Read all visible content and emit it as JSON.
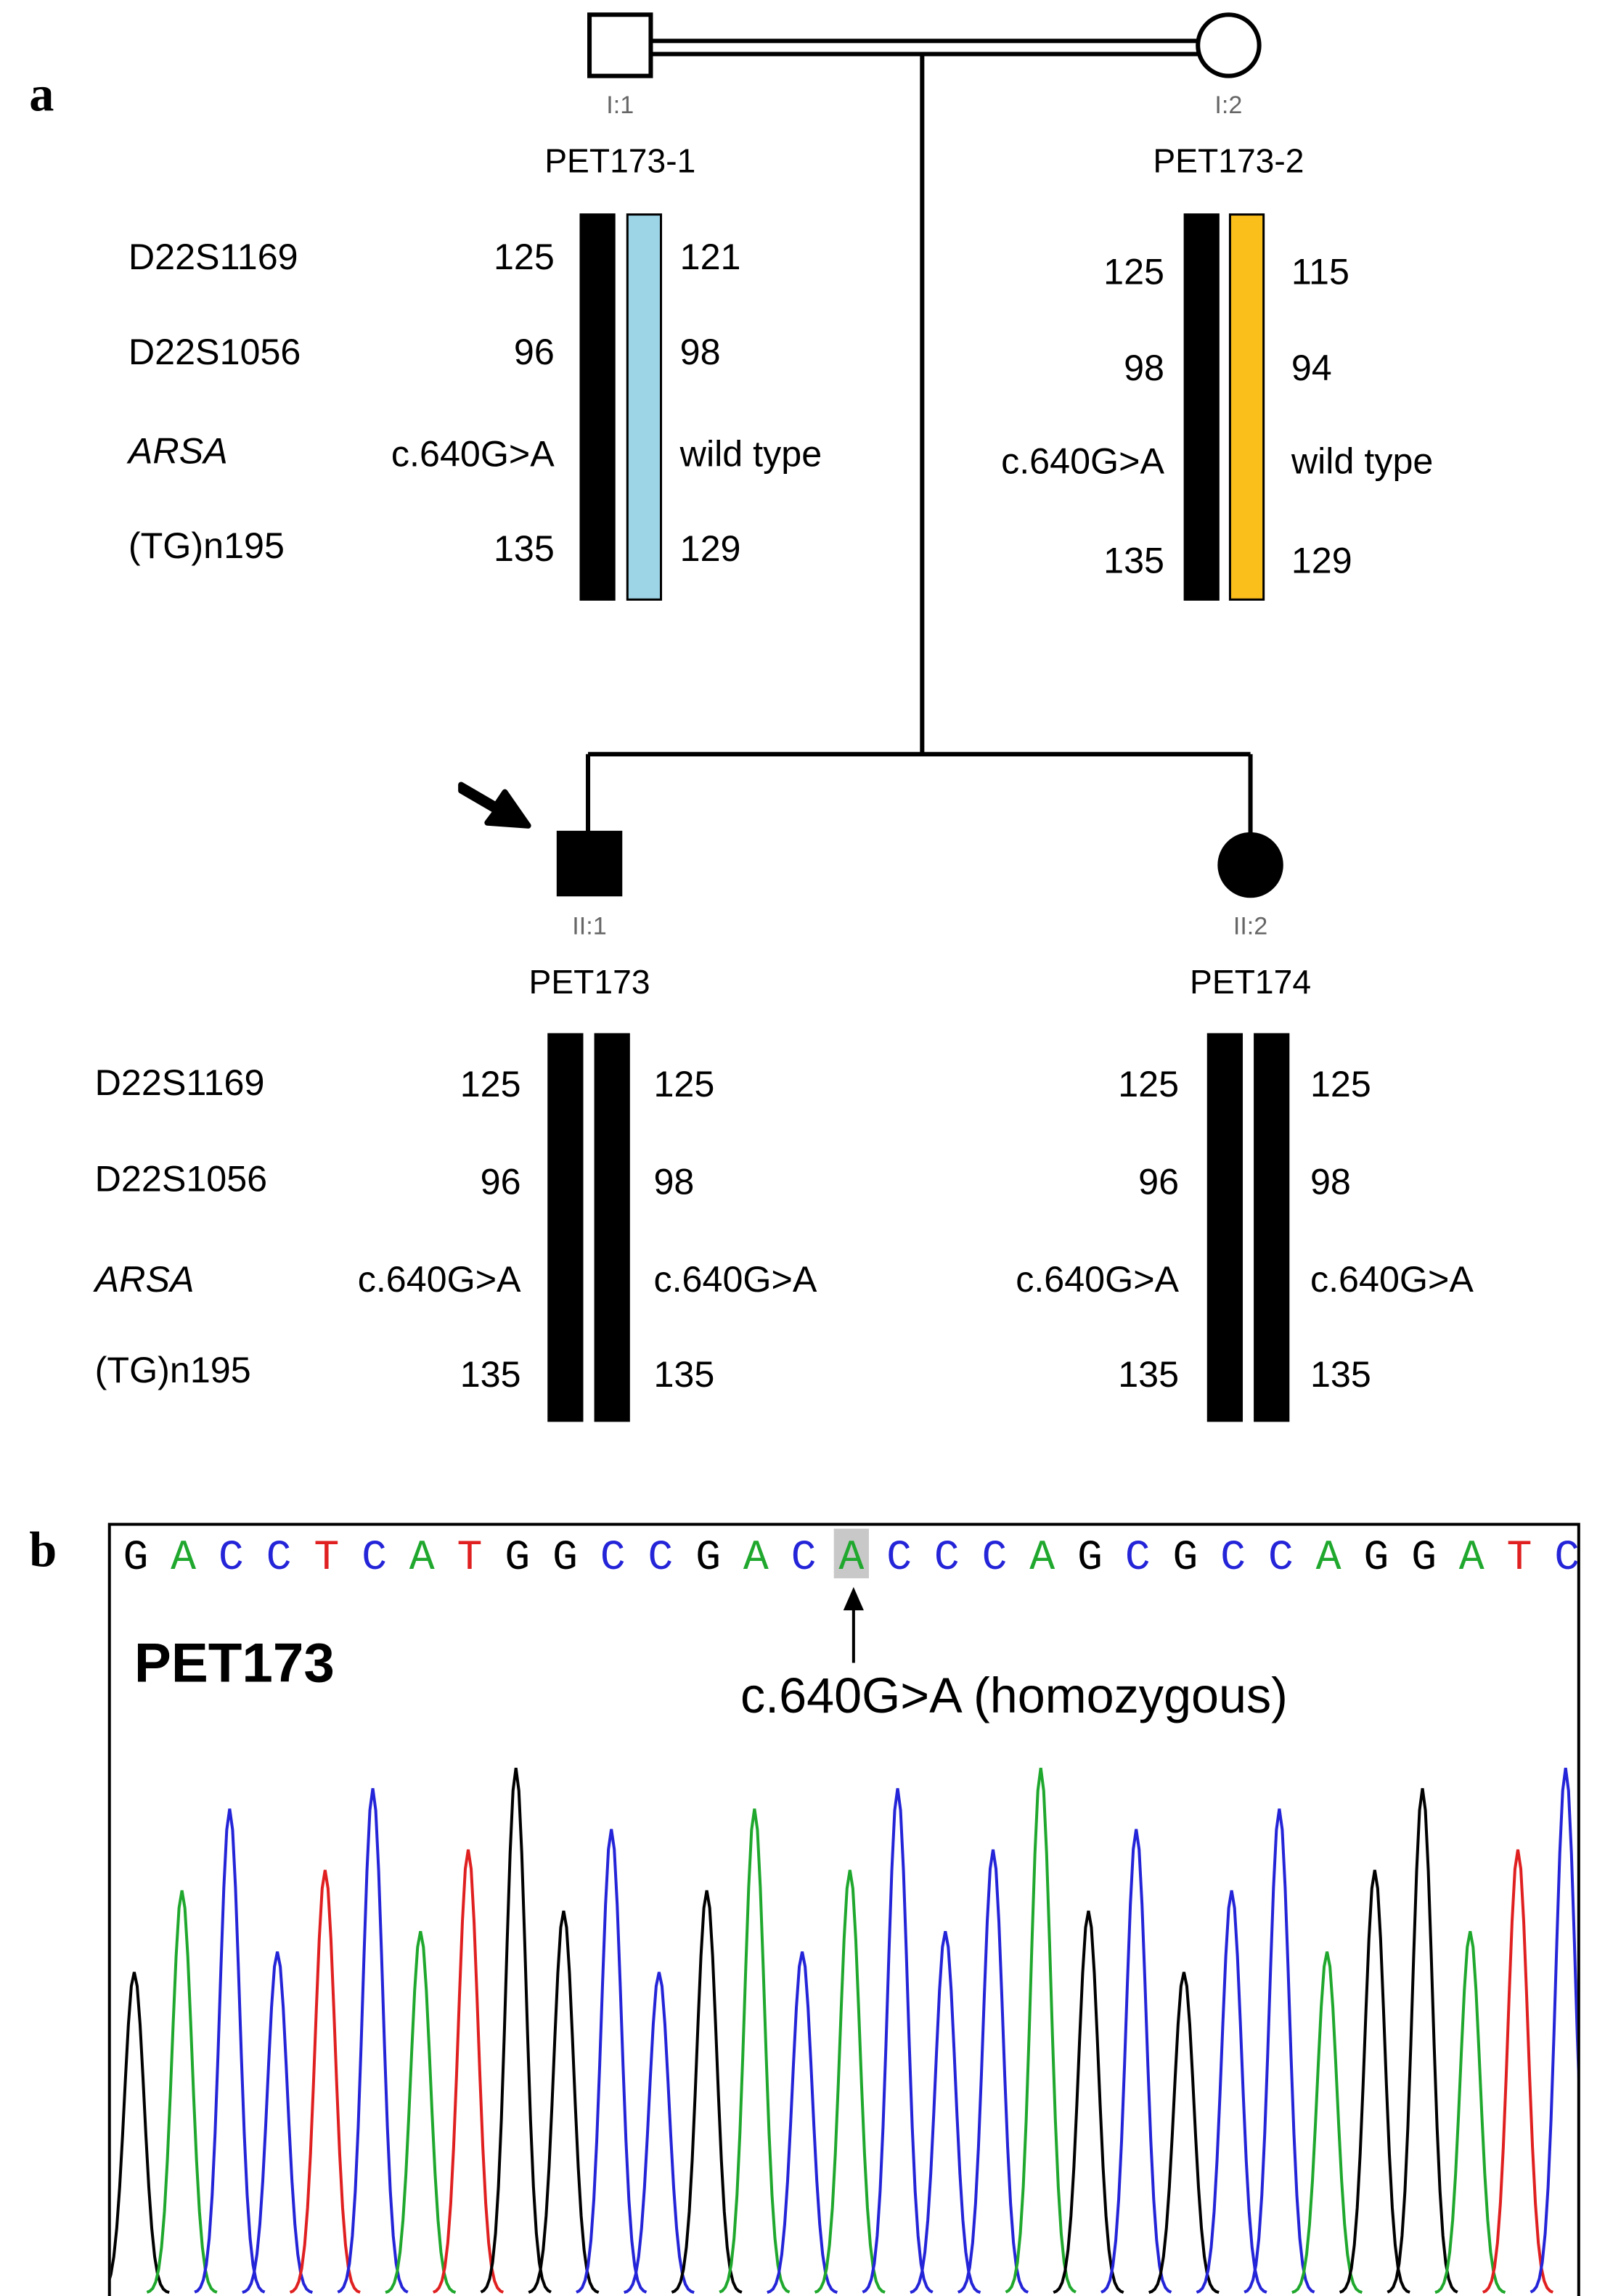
{
  "panel_a": {
    "label": "a",
    "markers": [
      "D22S1169",
      "D22S1056",
      "ARSA",
      "(TG)n195"
    ],
    "individuals": [
      {
        "id": "I:1",
        "name": "PET173-1",
        "sex": "male",
        "affected": false,
        "haplotype_colors": [
          "#000000",
          "#9dd4e6"
        ],
        "alleles": [
          [
            "125",
            "121"
          ],
          [
            "96",
            "98"
          ],
          [
            "c.640G>A",
            "wild type"
          ],
          [
            "135",
            "129"
          ]
        ]
      },
      {
        "id": "I:2",
        "name": "PET173-2",
        "sex": "female",
        "affected": false,
        "haplotype_colors": [
          "#000000",
          "#fbbf1c"
        ],
        "alleles": [
          [
            "125",
            "115"
          ],
          [
            "98",
            "94"
          ],
          [
            "c.640G>A",
            "wild type"
          ],
          [
            "135",
            "129"
          ]
        ]
      },
      {
        "id": "II:1",
        "name": "PET173",
        "sex": "male",
        "affected": true,
        "proband": true,
        "haplotype_colors": [
          "#000000",
          "#000000"
        ],
        "alleles": [
          [
            "125",
            "125"
          ],
          [
            "96",
            "98"
          ],
          [
            "c.640G>A",
            "c.640G>A"
          ],
          [
            "135",
            "135"
          ]
        ]
      },
      {
        "id": "II:2",
        "name": "PET174",
        "sex": "female",
        "affected": true,
        "haplotype_colors": [
          "#000000",
          "#000000"
        ],
        "alleles": [
          [
            "125",
            "125"
          ],
          [
            "96",
            "98"
          ],
          [
            "c.640G>A",
            "c.640G>A"
          ],
          [
            "135",
            "135"
          ]
        ]
      }
    ]
  },
  "panel_b": {
    "label": "b",
    "sample": "PET173",
    "annotation": "c.640G>A (homozygous)",
    "sequence": [
      "G",
      "A",
      "C",
      "C",
      "T",
      "C",
      "A",
      "T",
      "G",
      "G",
      "C",
      "C",
      "G",
      "A",
      "C",
      "A",
      "C",
      "C",
      "C",
      "A",
      "G",
      "C",
      "G",
      "C",
      "C",
      "A",
      "G",
      "G",
      "A",
      "T",
      "C"
    ],
    "highlight_index": 15,
    "base_colors": {
      "G": "#000000",
      "A": "#1fa82d",
      "C": "#2424d8",
      "T": "#e02020"
    }
  }
}
